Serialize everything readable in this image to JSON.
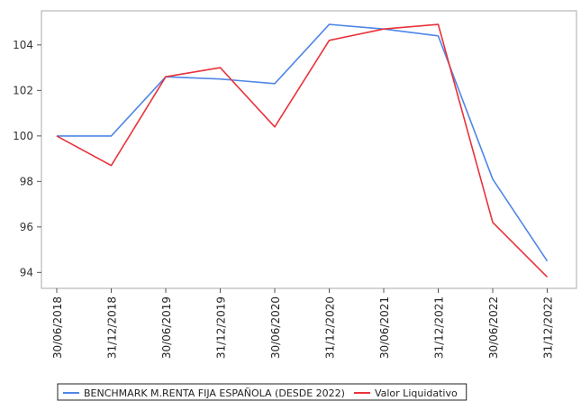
{
  "chart_data": {
    "type": "line",
    "title": "",
    "xlabel": "",
    "ylabel": "",
    "x": [
      "30/06/2018",
      "31/12/2018",
      "30/06/2019",
      "31/12/2019",
      "30/06/2020",
      "31/12/2020",
      "30/06/2021",
      "31/12/2021",
      "30/06/2022",
      "31/12/2022"
    ],
    "ylim": [
      93.3,
      105.5
    ],
    "yticks": [
      94,
      96,
      98,
      100,
      102,
      104
    ],
    "grid": false,
    "legend_position": "bottom",
    "series": [
      {
        "name": "BENCHMARK M.RENTA FIJA ESPAÑOLA (DESDE 2022)",
        "color": "#4f86e6",
        "values": [
          100.0,
          100.0,
          102.6,
          102.5,
          102.3,
          104.9,
          104.7,
          104.4,
          98.1,
          94.5
        ]
      },
      {
        "name": "Valor Liquidativo",
        "color": "#e8323a",
        "values": [
          100.0,
          98.7,
          102.6,
          103.0,
          100.4,
          104.2,
          104.7,
          104.9,
          96.2,
          93.8
        ]
      }
    ]
  }
}
